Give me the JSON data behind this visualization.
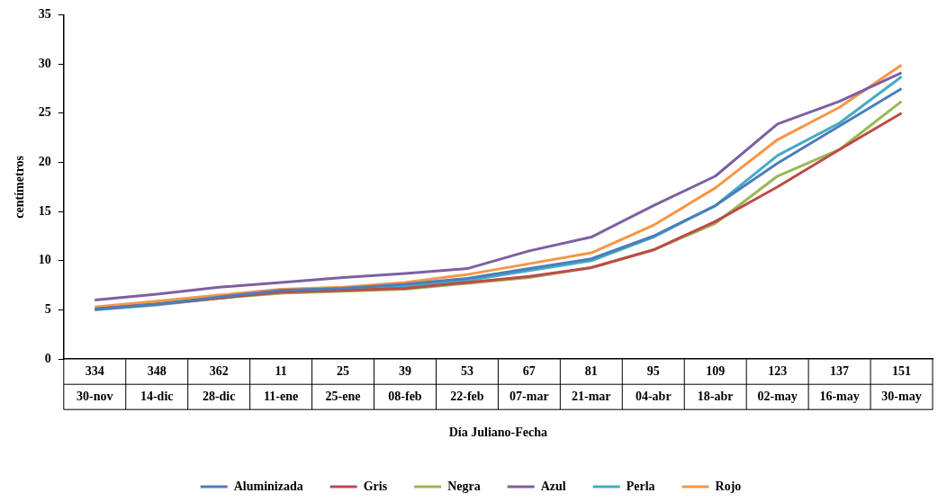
{
  "chart_data": {
    "type": "line",
    "xlabel": "Día Juliano-Fecha",
    "ylabel": "centímetros",
    "categories": [
      "334 30-nov",
      "348 14-dic",
      "362 28-dic",
      "11 11-ene",
      "25 25-ene",
      "39 08-feb",
      "53 22-feb",
      "67 07-mar",
      "81 21-mar",
      "95 04-abr",
      "109 18-abr",
      "123 02-may",
      "137 16-may",
      "151 30-may"
    ],
    "ylim": [
      0,
      35
    ],
    "yticks": [
      0,
      5,
      10,
      15,
      20,
      25,
      30,
      35
    ],
    "grid": false,
    "legend": "bottom",
    "marker": "none",
    "line_style": "solid",
    "series": [
      {
        "name": "Aluminizada",
        "color": "#4a7ebb",
        "values": [
          5.1,
          5.6,
          6.3,
          7.0,
          7.2,
          7.6,
          8.2,
          9.2,
          10.2,
          12.5,
          15.6,
          19.9,
          23.7,
          27.5
        ]
      },
      {
        "name": "Gris",
        "color": "#be4b48",
        "values": [
          5.1,
          5.6,
          6.2,
          6.8,
          7.0,
          7.2,
          7.8,
          8.4,
          9.3,
          11.1,
          14.0,
          17.5,
          21.3,
          25.0
        ]
      },
      {
        "name": "Negra",
        "color": "#98b954",
        "values": [
          5.1,
          5.6,
          6.2,
          6.7,
          6.9,
          7.1,
          7.7,
          8.3,
          9.3,
          11.1,
          13.8,
          18.6,
          21.3,
          26.2
        ]
      },
      {
        "name": "Azul",
        "color": "#7d60a0",
        "values": [
          6.0,
          6.6,
          7.3,
          7.8,
          8.3,
          8.7,
          9.2,
          11.0,
          12.4,
          15.6,
          18.6,
          23.9,
          26.2,
          29.1
        ]
      },
      {
        "name": "Perla",
        "color": "#46aac5",
        "values": [
          5.0,
          5.5,
          6.2,
          6.8,
          7.1,
          7.4,
          8.0,
          9.0,
          10.0,
          12.4,
          15.6,
          20.7,
          24.0,
          28.7
        ]
      },
      {
        "name": "Rojo",
        "color": "#f79646",
        "values": [
          5.3,
          5.9,
          6.5,
          7.1,
          7.3,
          7.8,
          8.6,
          9.7,
          10.8,
          13.6,
          17.4,
          22.3,
          25.6,
          29.9
        ]
      }
    ]
  }
}
